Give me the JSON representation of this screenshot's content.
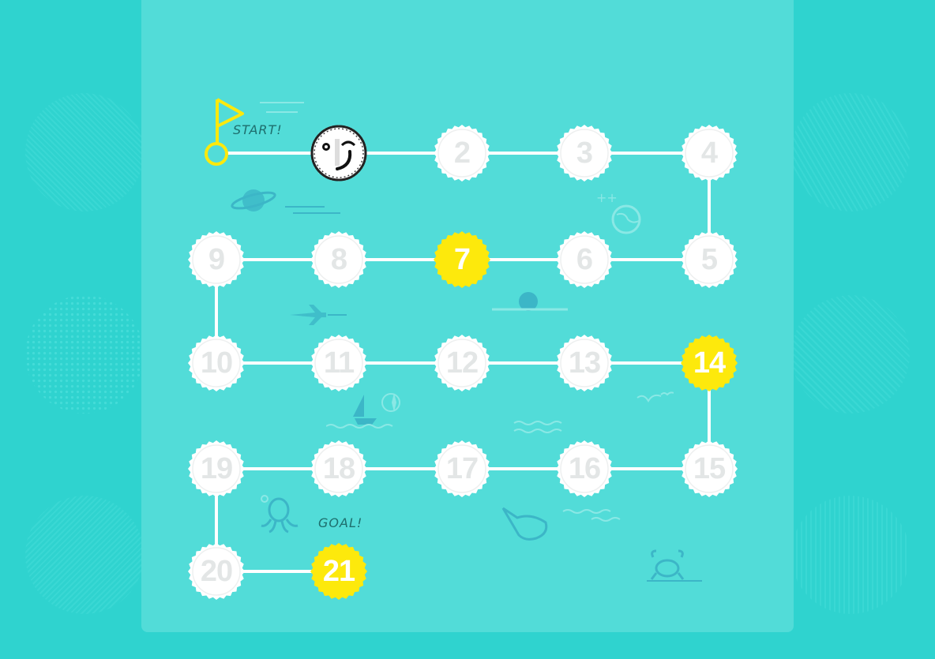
{
  "board": {
    "start_label": "START!",
    "goal_label": "GOAL!",
    "current_position": 1,
    "nodes": [
      {
        "n": 1,
        "label": "",
        "type": "player"
      },
      {
        "n": 2,
        "label": "2",
        "type": "normal"
      },
      {
        "n": 3,
        "label": "3",
        "type": "normal"
      },
      {
        "n": 4,
        "label": "4",
        "type": "normal"
      },
      {
        "n": 5,
        "label": "5",
        "type": "normal"
      },
      {
        "n": 6,
        "label": "6",
        "type": "normal"
      },
      {
        "n": 7,
        "label": "7",
        "type": "star"
      },
      {
        "n": 8,
        "label": "8",
        "type": "normal"
      },
      {
        "n": 9,
        "label": "9",
        "type": "normal"
      },
      {
        "n": 10,
        "label": "10",
        "type": "normal"
      },
      {
        "n": 11,
        "label": "11",
        "type": "normal"
      },
      {
        "n": 12,
        "label": "12",
        "type": "normal"
      },
      {
        "n": 13,
        "label": "13",
        "type": "normal"
      },
      {
        "n": 14,
        "label": "14",
        "type": "star"
      },
      {
        "n": 15,
        "label": "15",
        "type": "normal"
      },
      {
        "n": 16,
        "label": "16",
        "type": "normal"
      },
      {
        "n": 17,
        "label": "17",
        "type": "normal"
      },
      {
        "n": 18,
        "label": "18",
        "type": "normal"
      },
      {
        "n": 19,
        "label": "19",
        "type": "normal"
      },
      {
        "n": 20,
        "label": "20",
        "type": "normal"
      },
      {
        "n": 21,
        "label": "21",
        "type": "goal"
      }
    ]
  },
  "colors": {
    "background": "#2fd3cf",
    "board": "#52dcd8",
    "tile": "#ffffff",
    "tile_text": "#e3e6e6",
    "highlight": "#fde90c",
    "path": "#ffffff",
    "flag": "#fde90c",
    "ink": "#1e6e6d"
  },
  "icons": [
    "flag-icon",
    "planet-icon",
    "globe-icon",
    "airplane-icon",
    "submarine-icon",
    "sailboat-icon",
    "compass-icon",
    "bird-icon",
    "octopus-icon",
    "whale-icon",
    "crab-icon",
    "wave-icon",
    "smiley-icon"
  ]
}
